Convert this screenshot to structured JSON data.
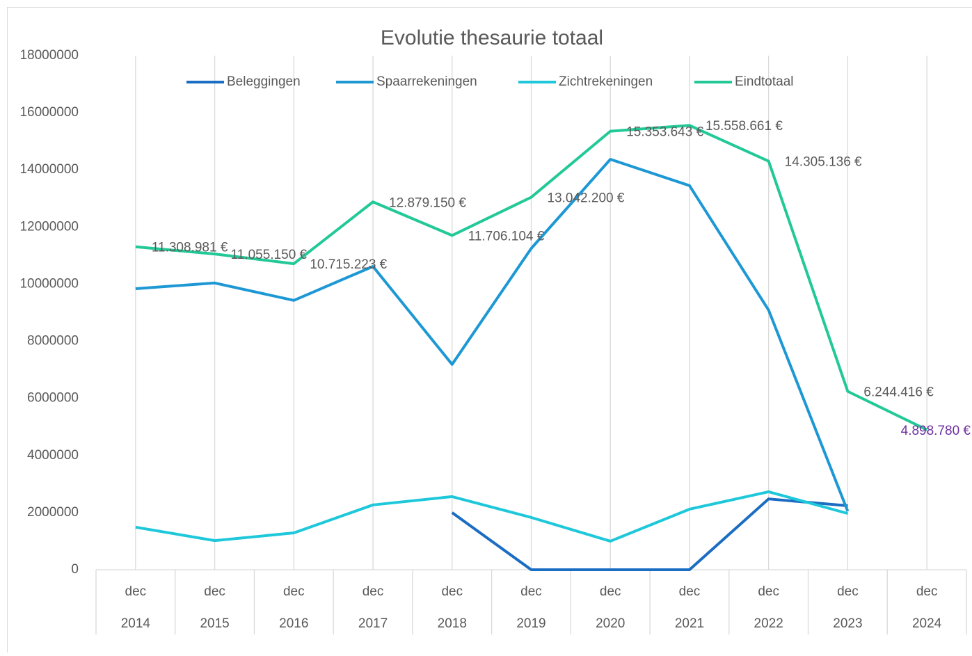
{
  "chart_data": {
    "type": "line",
    "title": "Evolutie thesaurie totaal",
    "categories": [
      "dec",
      "dec",
      "dec",
      "dec",
      "dec",
      "dec",
      "dec",
      "dec",
      "dec",
      "dec",
      "dec"
    ],
    "category_groups": [
      "2014",
      "2015",
      "2016",
      "2017",
      "2018",
      "2019",
      "2020",
      "2021",
      "2022",
      "2023",
      "2024"
    ],
    "ylim": [
      0,
      18000000
    ],
    "yticks": [
      0,
      2000000,
      4000000,
      6000000,
      8000000,
      10000000,
      12000000,
      14000000,
      16000000,
      18000000
    ],
    "grid": "x",
    "legend": "top",
    "series": [
      {
        "name": "Beleggingen",
        "color": "#1a6dc2",
        "values": [
          null,
          null,
          null,
          null,
          2000000,
          0,
          0,
          0,
          2480000,
          2240000,
          null
        ]
      },
      {
        "name": "Spaarrekeningen",
        "color": "#1d98d5",
        "values": [
          9840000,
          10040000,
          9430000,
          10620000,
          7190000,
          11250000,
          14370000,
          13450000,
          9090000,
          2050000,
          null
        ]
      },
      {
        "name": "Zichtrekeningen",
        "color": "#1ec8da",
        "values": [
          1490000,
          1020000,
          1290000,
          2270000,
          2560000,
          1830000,
          1000000,
          2120000,
          2730000,
          1970000,
          null
        ]
      },
      {
        "name": "Eindtotaal",
        "color": "#22c997",
        "values": [
          11308981,
          11055150,
          10715223,
          12879150,
          11706104,
          13042200,
          15353643,
          15558661,
          14305136,
          6244416,
          4898780
        ],
        "value_labels": [
          "11.308.981 €",
          "11.055.150 €",
          "10.715.223 €",
          "12.879.150 €",
          "11.706.104 €",
          "13.042.200 €",
          "15.353.643 €",
          "15.558.661 €",
          "14.305.136 €",
          "6.244.416 €",
          "4.898.780 €"
        ],
        "value_label_color": "#595959",
        "last_label_color": "#7030a0"
      }
    ]
  }
}
